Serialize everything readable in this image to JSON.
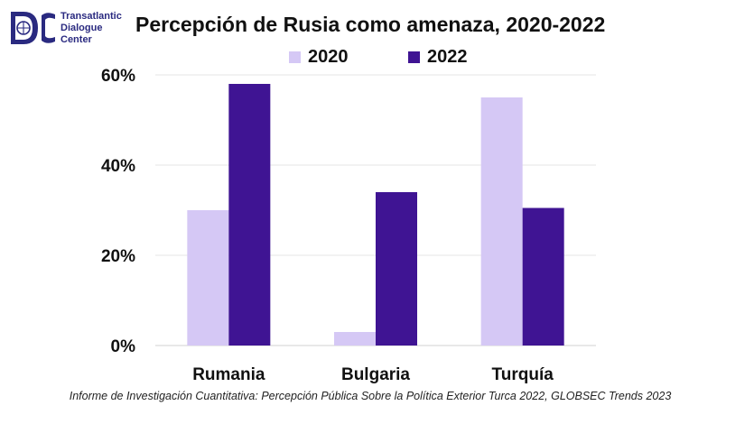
{
  "logo": {
    "lines": [
      "Transatlantic",
      "Dialogue",
      "Center"
    ],
    "color": "#2a2a80"
  },
  "source": "Informe de Investigación Cuantitativa: Percepción Pública Sobre la Política Exterior Turca 2022, GLOBSEC Trends 2023",
  "chart_data": {
    "type": "bar",
    "title": "Percepción de Rusia como amenaza, 2020-2022",
    "categories": [
      "Rumania",
      "Bulgaria",
      "Turquía"
    ],
    "series": [
      {
        "name": "2020",
        "values": [
          30,
          3,
          55
        ],
        "color": "#d5c8f5"
      },
      {
        "name": "2022",
        "values": [
          58,
          34,
          30.5
        ],
        "color": "#3f1493"
      }
    ],
    "ylim": [
      0,
      60
    ],
    "yticks": [
      0,
      20,
      40,
      60
    ],
    "ytick_labels": [
      "0%",
      "20%",
      "40%",
      "60%"
    ],
    "grid": true,
    "legend_position": "top-center"
  }
}
